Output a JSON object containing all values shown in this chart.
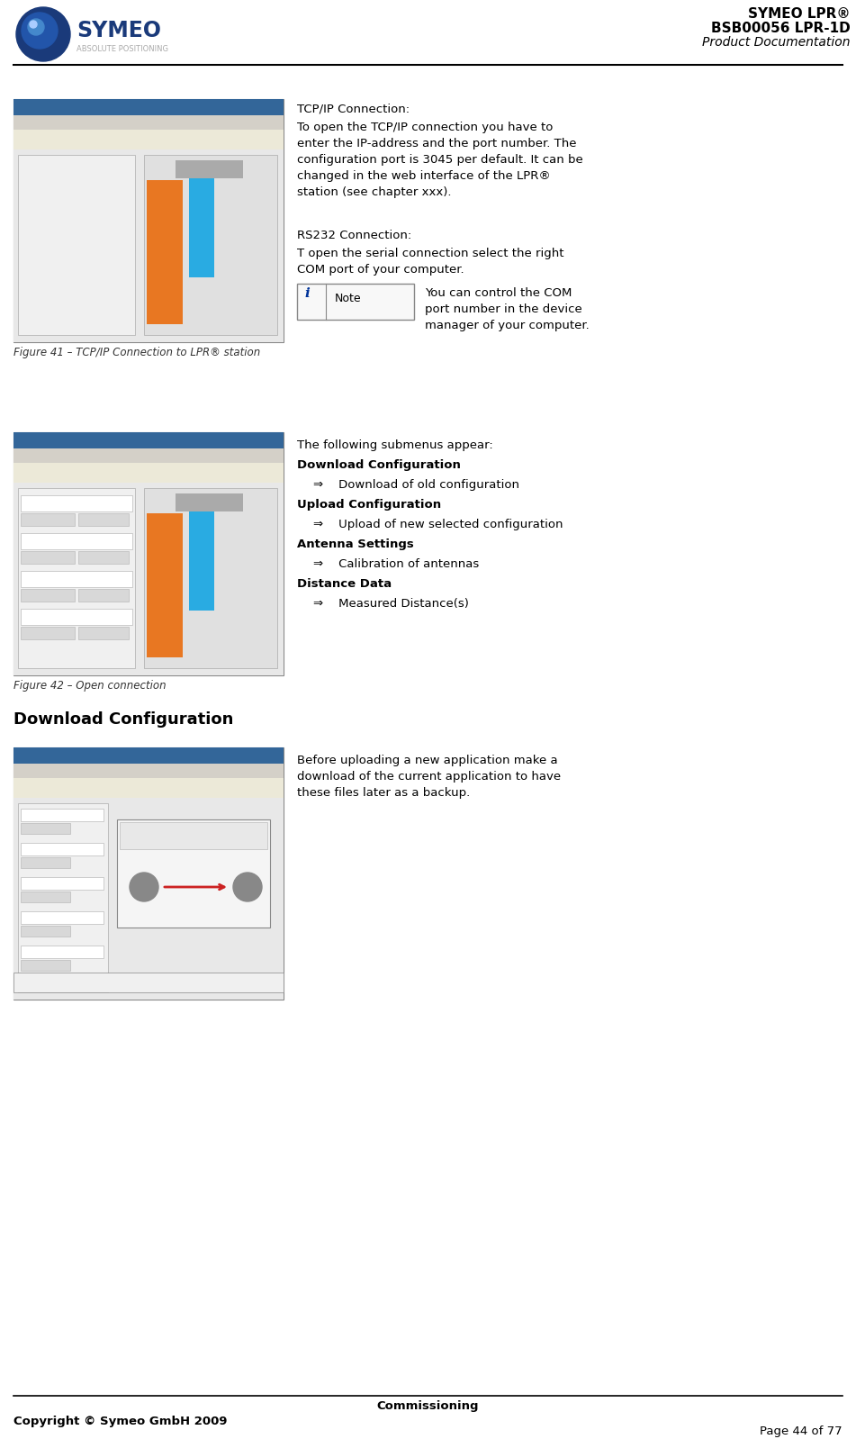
{
  "page_width": 9.51,
  "page_height": 15.98,
  "bg_color": "#ffffff",
  "header": {
    "title_line1": "SYMEO LPR®",
    "title_line2": "BSB00056 LPR-1D",
    "title_line3": "Product Documentation"
  },
  "footer": {
    "center_text": "Commissioning",
    "left_text": "Copyright © Symeo GmbH 2009",
    "right_text": "Page 44 of 77"
  },
  "sec1": {
    "fig_caption": "Figure 41 – TCP/IP Connection to LPR® station",
    "tcp_label": "TCP/IP Connection:",
    "tcp_body": "To open the TCP/IP connection you have to\nenter the IP-address and the port number. The\nconfiguration port is 3045 per default. It can be\nchanged in the web interface of the LPR®\nstation (see chapter xxx).",
    "rs232_label": "RS232 Connection:",
    "rs232_body": "T open the serial connection select the right\nCOM port of your computer.",
    "note_text": "You can control the COM\nport number in the device\nmanager of your computer."
  },
  "sec2": {
    "fig_caption": "Figure 42 – Open connection",
    "intro": "The following submenus appear:",
    "items": [
      {
        "text": "Download Configuration",
        "bold": true,
        "indent": false
      },
      {
        "text": "⇒    Download of old configuration",
        "bold": false,
        "indent": true
      },
      {
        "text": "Upload Configuration",
        "bold": true,
        "indent": false
      },
      {
        "text": "⇒    Upload of new selected configuration",
        "bold": false,
        "indent": true
      },
      {
        "text": "Antenna Settings",
        "bold": true,
        "indent": false
      },
      {
        "text": "⇒    Calibration of antennas",
        "bold": false,
        "indent": true
      },
      {
        "text": "Distance Data",
        "bold": true,
        "indent": false
      },
      {
        "text": "⇒    Measured Distance(s)",
        "bold": false,
        "indent": true
      }
    ]
  },
  "sec3": {
    "heading": "Download Configuration",
    "text": "Before uploading a new application make a\ndownload of the current application to have\nthese files later as a backup."
  }
}
